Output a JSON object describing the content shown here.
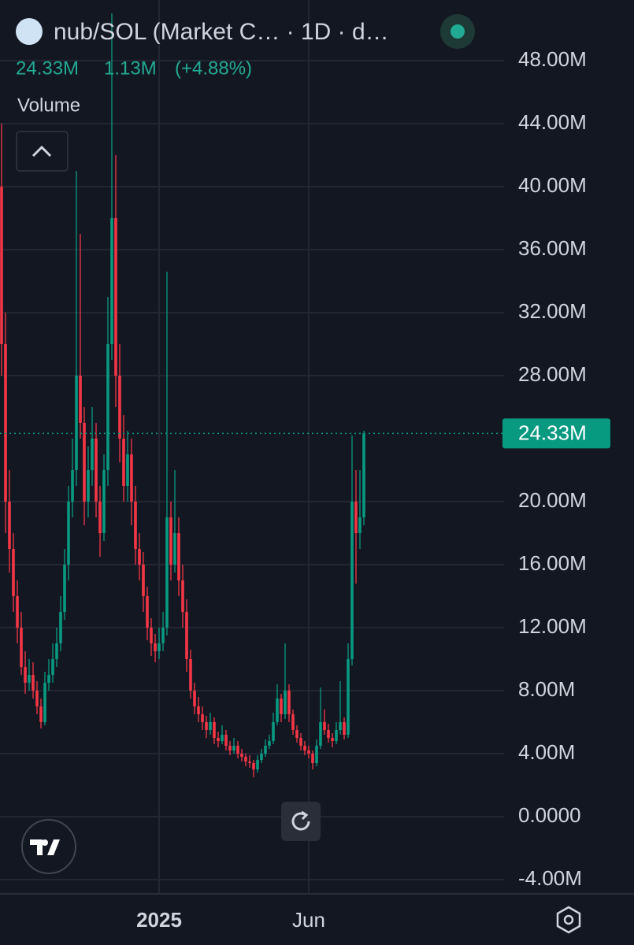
{
  "header": {
    "title": "nub/SOL (Market C… · 1D · d…",
    "last": {
      "value": 24.33,
      "label": "24.33M"
    },
    "change": {
      "value": 1.13,
      "label": "1.13M"
    },
    "change_pct": {
      "value": 4.88,
      "label": "(+4.88%)"
    },
    "indicator": "Volume"
  },
  "chart_data": {
    "type": "candlestick",
    "up_color": "#089981",
    "down_color": "#f23645",
    "grid": true,
    "last_price": {
      "value": 24.33,
      "label": "24.33M"
    },
    "xlim": [
      -0.4,
      127.6
    ],
    "xticks": [
      {
        "value": 40,
        "label": "2025"
      },
      {
        "value": 78,
        "label": "Jun"
      }
    ],
    "ylim": [
      -4.9,
      51.85
    ],
    "yticks": [
      {
        "value": 48,
        "label": "48.00M"
      },
      {
        "value": 44,
        "label": "44.00M"
      },
      {
        "value": 40,
        "label": "40.00M"
      },
      {
        "value": 36,
        "label": "36.00M"
      },
      {
        "value": 32,
        "label": "32.00M"
      },
      {
        "value": 28,
        "label": "28.00M"
      },
      {
        "value": 20,
        "label": "20.00M"
      },
      {
        "value": 16,
        "label": "16.00M"
      },
      {
        "value": 12,
        "label": "12.00M"
      },
      {
        "value": 8,
        "label": "8.00M"
      },
      {
        "value": 4,
        "label": "4.00M"
      },
      {
        "value": 0,
        "label": "0.0000"
      },
      {
        "value": -4,
        "label": "-4.00M"
      }
    ],
    "ohlc": [
      [
        40,
        44,
        28,
        30
      ],
      [
        30,
        32,
        18,
        20
      ],
      [
        20,
        22,
        15.5,
        17
      ],
      [
        17,
        18,
        13,
        14
      ],
      [
        14,
        15,
        11,
        12
      ],
      [
        12,
        13,
        9,
        9.5
      ],
      [
        9.5,
        10.5,
        7.8,
        8.5
      ],
      [
        8.5,
        10,
        8,
        9
      ],
      [
        9,
        9.8,
        7.5,
        8
      ],
      [
        8,
        8.6,
        6.5,
        7
      ],
      [
        7,
        7.5,
        5.6,
        6
      ],
      [
        6,
        9.2,
        5.8,
        8.5
      ],
      [
        8.5,
        10,
        8,
        9
      ],
      [
        9,
        11,
        8.5,
        10
      ],
      [
        10,
        12,
        9.5,
        11
      ],
      [
        11,
        14,
        10.5,
        13
      ],
      [
        13,
        17,
        12.5,
        16
      ],
      [
        16,
        21,
        15,
        20
      ],
      [
        20,
        24,
        19,
        22
      ],
      [
        22,
        41,
        21,
        28
      ],
      [
        28,
        37,
        24,
        25
      ],
      [
        25,
        26,
        18.5,
        20
      ],
      [
        20,
        23.5,
        19,
        22
      ],
      [
        22,
        26,
        21,
        24
      ],
      [
        24,
        25,
        19,
        20
      ],
      [
        20,
        21,
        16.5,
        18
      ],
      [
        18,
        23,
        17.5,
        22
      ],
      [
        22,
        33,
        21,
        30
      ],
      [
        30,
        51,
        29,
        38
      ],
      [
        38,
        42,
        26,
        28
      ],
      [
        28,
        30,
        22.5,
        24
      ],
      [
        24,
        25.5,
        20,
        21
      ],
      [
        21,
        24.5,
        20,
        23
      ],
      [
        23,
        24,
        18.5,
        20
      ],
      [
        20,
        21,
        16,
        17
      ],
      [
        17,
        18,
        15,
        16
      ],
      [
        16,
        16.8,
        13,
        14
      ],
      [
        14,
        14.6,
        11.2,
        12
      ],
      [
        12,
        12.6,
        10.2,
        11
      ],
      [
        11,
        11.6,
        9.8,
        10.5
      ],
      [
        10.5,
        12,
        10,
        11
      ],
      [
        11,
        13,
        10.5,
        12
      ],
      [
        12,
        34.6,
        11.5,
        19
      ],
      [
        19,
        20,
        15,
        16
      ],
      [
        16,
        22,
        15.5,
        18
      ],
      [
        18,
        19,
        14,
        15
      ],
      [
        15,
        16,
        12,
        13
      ],
      [
        13,
        13.8,
        9.2,
        10
      ],
      [
        10,
        10.6,
        7.5,
        8
      ],
      [
        8,
        8.5,
        6.5,
        7
      ],
      [
        7,
        7.6,
        6,
        6.5
      ],
      [
        6.5,
        7,
        5.5,
        6
      ],
      [
        6,
        6.4,
        5,
        5.5
      ],
      [
        5.5,
        6.6,
        5.2,
        6
      ],
      [
        6,
        6.3,
        4.6,
        5
      ],
      [
        5,
        5.4,
        4.4,
        4.8
      ],
      [
        4.8,
        5.8,
        4.6,
        5.2
      ],
      [
        5.2,
        5.5,
        4.2,
        4.5
      ],
      [
        4.5,
        4.8,
        3.9,
        4.2
      ],
      [
        4.2,
        5,
        4,
        4.5
      ],
      [
        4.5,
        4.8,
        3.7,
        4
      ],
      [
        4,
        4.3,
        3.5,
        3.8
      ],
      [
        3.8,
        4,
        3.2,
        3.5
      ],
      [
        3.5,
        3.9,
        3.1,
        3.4
      ],
      [
        3.4,
        3.6,
        2.5,
        3
      ],
      [
        3,
        3.9,
        2.8,
        3.6
      ],
      [
        3.6,
        4.3,
        3.4,
        4
      ],
      [
        4,
        4.9,
        3.8,
        4.5
      ],
      [
        4.5,
        5.2,
        4.3,
        4.8
      ],
      [
        4.8,
        6.6,
        4.6,
        6
      ],
      [
        6,
        8.4,
        5.8,
        7.5
      ],
      [
        7.5,
        7.8,
        6,
        6.5
      ],
      [
        6.5,
        11,
        6.2,
        8
      ],
      [
        8,
        8.4,
        6,
        6.5
      ],
      [
        6.5,
        6.8,
        5.2,
        5.5
      ],
      [
        5.5,
        5.8,
        4.7,
        5
      ],
      [
        5,
        5.3,
        4.2,
        4.5
      ],
      [
        4.5,
        4.8,
        3.9,
        4.2
      ],
      [
        4.2,
        4.5,
        3.7,
        4
      ],
      [
        4,
        4.2,
        3,
        3.4
      ],
      [
        3.4,
        4.9,
        3.2,
        4.5
      ],
      [
        4.5,
        8.2,
        4.3,
        6
      ],
      [
        6,
        6.8,
        5.2,
        5.5
      ],
      [
        5.5,
        5.9,
        4.7,
        5
      ],
      [
        5,
        5.3,
        4.4,
        4.8
      ],
      [
        4.8,
        6,
        4.6,
        5.5
      ],
      [
        5.5,
        8.6,
        5.2,
        6
      ],
      [
        6,
        6.3,
        4.9,
        5.2
      ],
      [
        5.2,
        11,
        5,
        10
      ],
      [
        10,
        24.2,
        9.6,
        20
      ],
      [
        20,
        22,
        14.8,
        18
      ],
      [
        18,
        22,
        17,
        19
      ],
      [
        19,
        24.5,
        18.5,
        24.33
      ]
    ]
  }
}
